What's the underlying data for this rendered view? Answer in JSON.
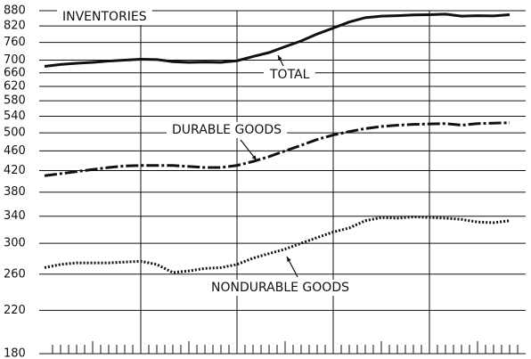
{
  "chart_data": {
    "type": "line",
    "annotations": [
      "INVENTORIES",
      "TOTAL",
      "DURABLE GOODS",
      "NONDURABLE GOODS"
    ],
    "x": [
      0,
      2,
      4,
      6,
      8,
      10,
      12,
      14,
      16,
      18,
      20,
      22,
      24,
      26,
      28,
      30,
      32,
      34,
      36,
      38,
      40,
      42,
      44,
      46,
      48,
      50,
      52,
      54,
      56,
      58
    ],
    "series": [
      {
        "name": "TOTAL",
        "color": "#111111",
        "style": "solid",
        "values": [
          680,
          686,
          690,
          693,
          697,
          700,
          703,
          702,
          695,
          693,
          694,
          693,
          698,
          712,
          725,
          745,
          765,
          790,
          812,
          835,
          852,
          858,
          860,
          863,
          864,
          866,
          858,
          860,
          859,
          864
        ]
      },
      {
        "name": "DURABLE GOODS",
        "color": "#111111",
        "style": "dashdot",
        "values": [
          410,
          414,
          418,
          422,
          426,
          429,
          430,
          430,
          430,
          428,
          426,
          426,
          430,
          438,
          448,
          460,
          472,
          485,
          495,
          503,
          510,
          515,
          518,
          520,
          521,
          522,
          518,
          522,
          523,
          524
        ]
      },
      {
        "name": "NONDURABLE GOODS",
        "color": "#111111",
        "style": "dotted",
        "values": [
          268,
          272,
          274,
          274,
          274,
          275,
          276,
          272,
          262,
          264,
          267,
          268,
          272,
          280,
          286,
          292,
          300,
          308,
          316,
          322,
          333,
          338,
          337,
          339,
          338,
          337,
          335,
          331,
          330,
          333
        ]
      }
    ],
    "xlim": [
      0,
      60
    ],
    "xticks": [
      1,
      2,
      3,
      4,
      5,
      6,
      7,
      8,
      9,
      10,
      11,
      12,
      13,
      14,
      15,
      16,
      17,
      18,
      19,
      20,
      21,
      22,
      23,
      24,
      25,
      26,
      27,
      28,
      29,
      30,
      31,
      32,
      33,
      34,
      35,
      36,
      37,
      38,
      39,
      40,
      41,
      42,
      43,
      44,
      45,
      46,
      47,
      48,
      49,
      50,
      51,
      52,
      53,
      54,
      55,
      56,
      57,
      58,
      59
    ],
    "xgridlines": [
      12,
      24,
      36,
      48
    ],
    "ylim": [
      180,
      880
    ],
    "yticks": [
      180,
      220,
      260,
      300,
      340,
      380,
      420,
      460,
      500,
      540,
      580,
      620,
      660,
      700,
      760,
      820,
      880
    ],
    "log_scale_y": true,
    "grid": true
  }
}
